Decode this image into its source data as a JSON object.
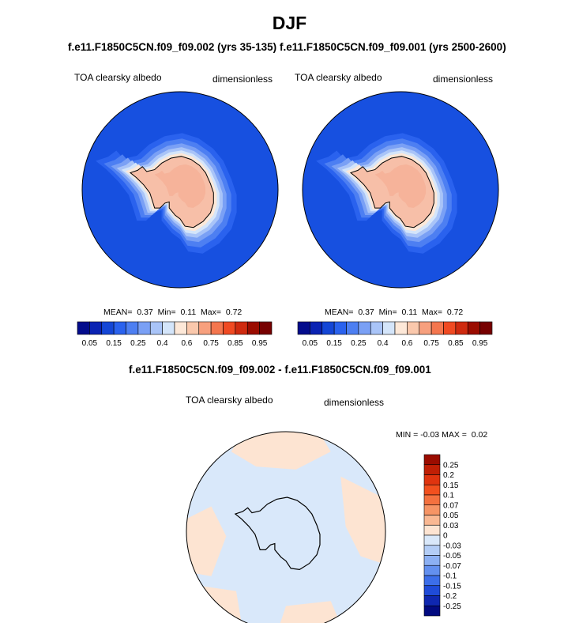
{
  "figure": {
    "title": "DJF",
    "colors": {
      "ocean": "#1750e0",
      "continent": "#f7bfa8",
      "coastline": "#000000",
      "diff_positive": "#fde4d2",
      "diff_negative": "#d9e8fa"
    }
  },
  "chart_data": [
    {
      "type": "heatmap",
      "projection": "south-polar-stereographic",
      "title": "f.e11.F1850C5CN.f09_f09.002 (yrs 35-135)",
      "variable_label": "TOA clearsky albedo",
      "units_label": "dimensionless",
      "stats": {
        "mean_label": "MEAN=",
        "mean": "0.37",
        "min_label": "Min=",
        "min": "0.11",
        "max_label": "Max=",
        "max": "0.72"
      },
      "colorbar": {
        "orientation": "horizontal",
        "levels": [
          "0.05",
          "0.1",
          "0.15",
          "0.2",
          "0.25",
          "0.3",
          "0.4",
          "0.5",
          "0.6",
          "0.7",
          "0.75",
          "0.8",
          "0.85",
          "0.9",
          "0.95"
        ],
        "tick_labels": [
          "0.05",
          "0.15",
          "0.25",
          "0.4",
          "0.6",
          "0.75",
          "0.85",
          "0.95"
        ],
        "colors": [
          "#030c8c",
          "#0a23b3",
          "#1446d6",
          "#2a62ee",
          "#4d7ff2",
          "#7aa0f5",
          "#a9c4f8",
          "#d4e5fa",
          "#fde8d8",
          "#fac8ac",
          "#f7a07e",
          "#f4764e",
          "#f04a22",
          "#cf2a0f",
          "#9b0c00",
          "#770000"
        ]
      }
    },
    {
      "type": "heatmap",
      "projection": "south-polar-stereographic",
      "title": "f.e11.F1850C5CN.f09_f09.001 (yrs 2500-2600)",
      "variable_label": "TOA clearsky albedo",
      "units_label": "dimensionless",
      "stats": {
        "mean_label": "MEAN=",
        "mean": "0.37",
        "min_label": "Min=",
        "min": "0.11",
        "max_label": "Max=",
        "max": "0.72"
      },
      "colorbar": {
        "orientation": "horizontal",
        "levels": [
          "0.05",
          "0.1",
          "0.15",
          "0.2",
          "0.25",
          "0.3",
          "0.4",
          "0.5",
          "0.6",
          "0.7",
          "0.75",
          "0.8",
          "0.85",
          "0.9",
          "0.95"
        ],
        "tick_labels": [
          "0.05",
          "0.15",
          "0.25",
          "0.4",
          "0.6",
          "0.75",
          "0.85",
          "0.95"
        ],
        "colors": [
          "#030c8c",
          "#0a23b3",
          "#1446d6",
          "#2a62ee",
          "#4d7ff2",
          "#7aa0f5",
          "#a9c4f8",
          "#d4e5fa",
          "#fde8d8",
          "#fac8ac",
          "#f7a07e",
          "#f4764e",
          "#f04a22",
          "#cf2a0f",
          "#9b0c00",
          "#770000"
        ]
      }
    },
    {
      "type": "heatmap",
      "projection": "south-polar-stereographic",
      "title": "f.e11.F1850C5CN.f09_f09.002 - f.e11.F1850C5CN.f09_f09.001",
      "variable_label": "TOA clearsky albedo",
      "units_label": "dimensionless",
      "stats": {
        "min_label": "MIN =",
        "min": "-0.03",
        "max_label": "MAX =",
        "max": "0.02"
      },
      "colorbar": {
        "orientation": "vertical",
        "labels": [
          "0.25",
          "0.2",
          "0.15",
          "0.1",
          "0.07",
          "0.05",
          "0.03",
          "0",
          "-0.03",
          "-0.05",
          "-0.07",
          "-0.1",
          "-0.15",
          "-0.2",
          "-0.25"
        ],
        "colors": [
          "#9b0c00",
          "#c01f05",
          "#e0340f",
          "#f2501e",
          "#f4713f",
          "#f69465",
          "#f9b893",
          "#fde4d2",
          "#d9e8fa",
          "#b3cdf6",
          "#8cb0f3",
          "#6390ef",
          "#3c6ee9",
          "#1f4bd8",
          "#0f27b0",
          "#020a80"
        ]
      }
    }
  ]
}
